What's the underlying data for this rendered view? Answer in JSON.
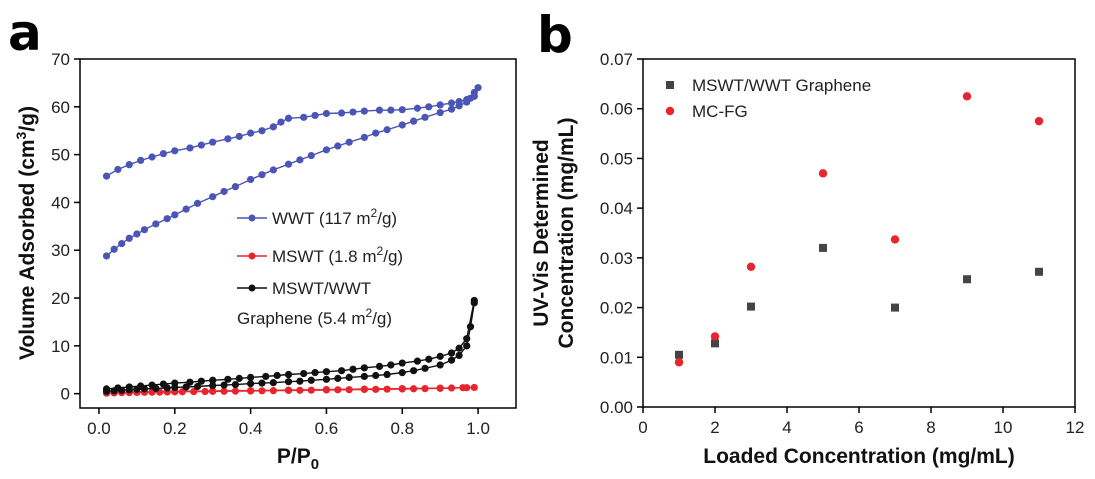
{
  "panels": {
    "a": "a",
    "b": "b"
  },
  "chart_data": [
    {
      "type": "line",
      "panel": "a",
      "title": "",
      "xlabel": "P/P",
      "xlabel_sub": "0",
      "ylabel_pre": "Volume Adsorbed (cm",
      "ylabel_sup": "3",
      "ylabel_post": "/g)",
      "xlim": [
        -0.05,
        1.1
      ],
      "ylim": [
        -3,
        70
      ],
      "xticks": [
        0.0,
        0.2,
        0.4,
        0.6,
        0.8,
        1.0
      ],
      "xtick_labels": [
        "0.0",
        "0.2",
        "0.4",
        "0.6",
        "0.8",
        "1.0"
      ],
      "yticks": [
        0,
        10,
        20,
        30,
        40,
        50,
        60,
        70
      ],
      "ytick_labels": [
        "0",
        "10",
        "20",
        "30",
        "40",
        "50",
        "60",
        "70"
      ],
      "legend_position": "center-right",
      "series": [
        {
          "name": "WWT",
          "legend": {
            "pre": "WWT (117 m",
            "sup": "2",
            "post": "/g)"
          },
          "color": "#4a55b5",
          "adsorption": {
            "x": [
              0.02,
              0.04,
              0.06,
              0.08,
              0.1,
              0.12,
              0.15,
              0.18,
              0.2,
              0.23,
              0.26,
              0.3,
              0.33,
              0.36,
              0.4,
              0.43,
              0.46,
              0.5,
              0.53,
              0.56,
              0.6,
              0.63,
              0.66,
              0.7,
              0.73,
              0.76,
              0.8,
              0.83,
              0.86,
              0.9,
              0.93,
              0.95,
              0.97,
              0.98,
              0.99,
              1.0
            ],
            "y": [
              28.8,
              30.2,
              31.4,
              32.5,
              33.4,
              34.3,
              35.5,
              36.6,
              37.4,
              38.6,
              39.8,
              41.2,
              42.3,
              43.3,
              44.8,
              45.8,
              46.8,
              48.0,
              48.9,
              49.8,
              51.0,
              51.8,
              52.6,
              53.6,
              54.5,
              55.2,
              56.2,
              57.0,
              57.8,
              58.8,
              59.5,
              60.2,
              61.0,
              61.8,
              63.0,
              64.0
            ]
          },
          "desorption": {
            "x": [
              0.99,
              0.97,
              0.95,
              0.93,
              0.9,
              0.87,
              0.84,
              0.8,
              0.77,
              0.74,
              0.7,
              0.67,
              0.64,
              0.6,
              0.57,
              0.54,
              0.5,
              0.48,
              0.46,
              0.43,
              0.4,
              0.37,
              0.34,
              0.3,
              0.27,
              0.24,
              0.2,
              0.17,
              0.14,
              0.11,
              0.08,
              0.05,
              0.02
            ],
            "y": [
              62.2,
              61.5,
              61.1,
              60.8,
              60.4,
              60.0,
              59.7,
              59.4,
              59.3,
              59.3,
              59.1,
              58.9,
              58.7,
              58.6,
              58.2,
              57.8,
              57.6,
              56.8,
              55.8,
              55.0,
              54.5,
              53.8,
              53.3,
              52.6,
              52.0,
              51.4,
              50.8,
              50.2,
              49.5,
              48.8,
              47.9,
              46.9,
              45.5
            ]
          }
        },
        {
          "name": "MSWT",
          "legend": {
            "pre": "MSWT (1.8 m",
            "sup": "2",
            "post": "/g)"
          },
          "color": "#e8242c",
          "adsorption": {
            "x": [
              0.02,
              0.04,
              0.06,
              0.08,
              0.1,
              0.12,
              0.14,
              0.16,
              0.18,
              0.2,
              0.22,
              0.25,
              0.28,
              0.3,
              0.33,
              0.36,
              0.4,
              0.43,
              0.46,
              0.5,
              0.53,
              0.56,
              0.6,
              0.63,
              0.66,
              0.7,
              0.73,
              0.76,
              0.8,
              0.83,
              0.86,
              0.9,
              0.93,
              0.96,
              0.99
            ],
            "y": [
              0.1,
              0.15,
              0.2,
              0.22,
              0.25,
              0.28,
              0.3,
              0.32,
              0.35,
              0.37,
              0.4,
              0.43,
              0.45,
              0.48,
              0.5,
              0.53,
              0.56,
              0.6,
              0.63,
              0.67,
              0.7,
              0.73,
              0.77,
              0.8,
              0.83,
              0.87,
              0.9,
              0.94,
              0.98,
              1.02,
              1.06,
              1.12,
              1.18,
              1.25,
              1.3
            ]
          },
          "desorption": {
            "x": [
              0.97,
              0.9,
              0.8,
              0.7,
              0.6,
              0.5,
              0.4,
              0.3,
              0.2,
              0.1,
              0.04
            ],
            "y": [
              1.25,
              1.15,
              1.05,
              0.95,
              0.85,
              0.75,
              0.65,
              0.55,
              0.45,
              0.35,
              0.25
            ]
          }
        },
        {
          "name": "MSWT/WWT Graphene",
          "legend": {
            "line1": "MSWT/WWT",
            "pre": "Graphene (5.4 m",
            "sup": "2",
            "post": "/g)"
          },
          "color": "#111111",
          "adsorption": {
            "x": [
              0.02,
              0.04,
              0.06,
              0.08,
              0.1,
              0.12,
              0.15,
              0.18,
              0.2,
              0.23,
              0.26,
              0.3,
              0.33,
              0.36,
              0.4,
              0.43,
              0.46,
              0.5,
              0.53,
              0.56,
              0.6,
              0.63,
              0.66,
              0.7,
              0.73,
              0.76,
              0.8,
              0.83,
              0.86,
              0.9,
              0.93,
              0.95,
              0.97,
              0.98,
              0.99
            ],
            "y": [
              0.5,
              0.6,
              0.7,
              0.8,
              0.9,
              1.0,
              1.1,
              1.2,
              1.3,
              1.4,
              1.5,
              1.7,
              1.8,
              1.9,
              2.1,
              2.2,
              2.3,
              2.5,
              2.6,
              2.8,
              3.0,
              3.2,
              3.4,
              3.6,
              3.8,
              4.0,
              4.4,
              4.8,
              5.3,
              6.0,
              7.0,
              8.0,
              10.0,
              14.0,
              19.0
            ]
          },
          "desorption": {
            "x": [
              0.99,
              0.97,
              0.95,
              0.93,
              0.9,
              0.87,
              0.84,
              0.8,
              0.77,
              0.74,
              0.7,
              0.67,
              0.64,
              0.6,
              0.57,
              0.54,
              0.5,
              0.47,
              0.44,
              0.4,
              0.37,
              0.34,
              0.3,
              0.27,
              0.24,
              0.2,
              0.17,
              0.14,
              0.11,
              0.08,
              0.05,
              0.02
            ],
            "y": [
              19.5,
              11.5,
              9.5,
              8.5,
              7.8,
              7.2,
              6.8,
              6.4,
              6.0,
              5.7,
              5.4,
              5.1,
              4.8,
              4.6,
              4.4,
              4.2,
              4.0,
              3.8,
              3.6,
              3.4,
              3.2,
              3.0,
              2.8,
              2.6,
              2.4,
              2.2,
              2.0,
              1.8,
              1.6,
              1.4,
              1.2,
              1.0
            ]
          }
        }
      ]
    },
    {
      "type": "scatter",
      "panel": "b",
      "title": "",
      "xlabel": "Loaded Concentration (mg/mL)",
      "ylabel_line1": "UV-Vis Determined",
      "ylabel_line2": "Concentration (mg/mL)",
      "xlim": [
        0,
        12
      ],
      "ylim": [
        0,
        0.07
      ],
      "xticks": [
        0,
        2,
        4,
        6,
        8,
        10,
        12
      ],
      "xtick_labels": [
        "0",
        "2",
        "4",
        "6",
        "8",
        "10",
        "12"
      ],
      "yticks": [
        0,
        0.01,
        0.02,
        0.03,
        0.04,
        0.05,
        0.06,
        0.07
      ],
      "ytick_labels": [
        "0.00",
        "0.01",
        "0.02",
        "0.03",
        "0.04",
        "0.05",
        "0.06",
        "0.07"
      ],
      "legend_position": "top-left",
      "series": [
        {
          "name": "MSWT/WWT Graphene",
          "marker": "square",
          "color": "#444444",
          "x": [
            1,
            2,
            3,
            5,
            7,
            9,
            11
          ],
          "y": [
            0.0105,
            0.0128,
            0.0202,
            0.032,
            0.02,
            0.0257,
            0.0272
          ]
        },
        {
          "name": "MC-FG",
          "marker": "circle",
          "color": "#e8242c",
          "x": [
            1,
            2,
            3,
            5,
            7,
            9,
            11
          ],
          "y": [
            0.009,
            0.0142,
            0.0282,
            0.047,
            0.0337,
            0.0625,
            0.0575
          ]
        }
      ]
    }
  ]
}
